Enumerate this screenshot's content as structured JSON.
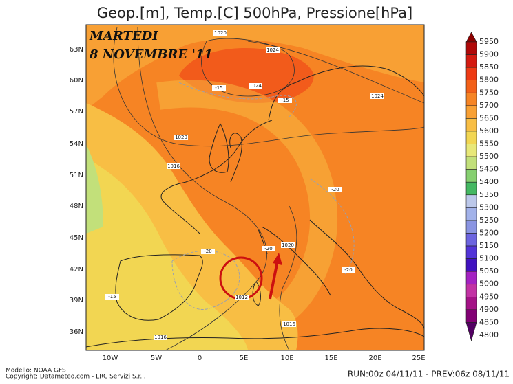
{
  "title": "Geop.[m], Temp.[C] 500hPa, Pressione[hPa]",
  "overlay": {
    "day": "MARTEDI",
    "date": "8 NOVEMBRE '11"
  },
  "lat_labels": [
    "63N",
    "60N",
    "57N",
    "54N",
    "51N",
    "48N",
    "45N",
    "42N",
    "39N",
    "36N"
  ],
  "lon_labels": [
    "10W",
    "5W",
    "0",
    "5E",
    "10E",
    "15E",
    "20E",
    "25E"
  ],
  "colorbar": {
    "levels": [
      5950,
      5900,
      5850,
      5800,
      5750,
      5700,
      5650,
      5600,
      5550,
      5500,
      5450,
      5400,
      5350,
      5300,
      5250,
      5200,
      5150,
      5100,
      5050,
      5000,
      4950,
      4900,
      4850,
      4800
    ],
    "colors": [
      "#8b0000",
      "#b00808",
      "#d41a10",
      "#ee3a14",
      "#f36018",
      "#f68424",
      "#f8a034",
      "#f8be44",
      "#f2d652",
      "#e8e878",
      "#c2e07a",
      "#86d070",
      "#44b862",
      "#bcc8ea",
      "#a2b2ea",
      "#8a94e2",
      "#6c64e0",
      "#5234d8",
      "#4012c0",
      "#a422c2",
      "#c232a4",
      "#a41286",
      "#820074",
      "#520062"
    ]
  },
  "contour_labels": [
    "1020",
    "1024",
    "-15",
    "1024",
    "1024",
    "-15",
    "1020",
    "1016",
    "-20",
    "-20",
    "-20",
    "1020",
    "-20",
    "-15",
    "1012",
    "1016",
    "1016"
  ],
  "footer": {
    "model": "Modello: NOAA GFS",
    "copyright": "Copyright: Datameteo.com - LRC Servizi S.r.l.",
    "run": "RUN:00z 04/11/11 - PREV:06z 08/11/11"
  }
}
